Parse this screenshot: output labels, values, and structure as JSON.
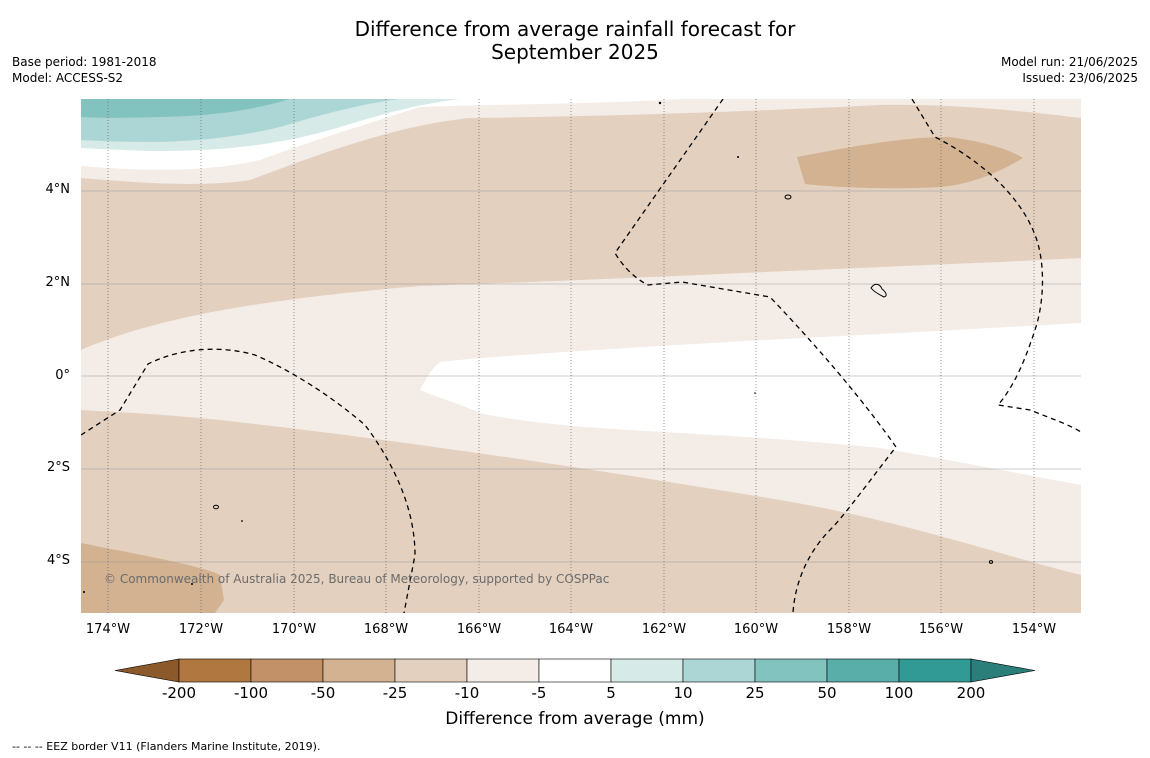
{
  "title": {
    "line1": "Difference from average rainfall forecast for",
    "line2": "September 2025"
  },
  "meta_left": {
    "base_period": "Base period: 1981-2018",
    "model": "Model: ACCESS-S2"
  },
  "meta_right": {
    "model_run": "Model run: 21/06/2025",
    "issued": "Issued: 23/06/2025"
  },
  "map": {
    "lat_ticks": [
      "4°N",
      "2°N",
      "0°",
      "2°S",
      "4°S"
    ],
    "lon_ticks": [
      "174°W",
      "172°W",
      "170°W",
      "168°W",
      "166°W",
      "164°W",
      "162°W",
      "160°W",
      "158°W",
      "156°W",
      "154°W"
    ],
    "credit": "© Commonwealth of Australia 2025, Bureau of Meteorology, supported by COSPPac"
  },
  "colorbar": {
    "labels": [
      "-200",
      "-100",
      "-50",
      "-25",
      "-10",
      "-5",
      "5",
      "10",
      "25",
      "50",
      "100",
      "200"
    ],
    "title": "Difference from average (mm)",
    "colors": {
      "lt_minus200": "#8c5a2a",
      "m200_m100": "#b07840",
      "m100_m50": "#c29168",
      "m50_m25": "#d3b292",
      "m25_m10": "#e3d0bf",
      "m10_m5": "#f4ece7",
      "m5_p5": "#ffffff",
      "p5_p10": "#d6eae8",
      "p10_p25": "#acd6d5",
      "p25_p50": "#82c2bf",
      "p50_p100": "#5aaeaa",
      "p100_p200": "#329a95",
      "gt_200": "#2a7f7a"
    }
  },
  "footnote": "--  --  -- EEZ border V11 (Flanders Marine Institute, 2019)."
}
